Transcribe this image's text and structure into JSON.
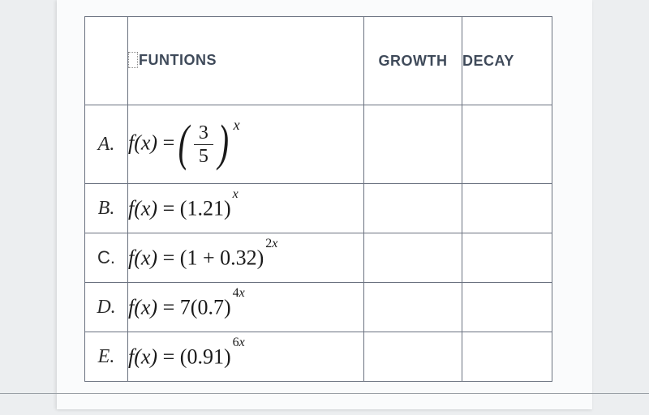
{
  "table": {
    "border_color": "#6b7280",
    "background": "#ffffff",
    "paper_background": "#fafbfc",
    "page_background": "#eceef0",
    "header_color": "#3f4a5a",
    "text_color": "#1a1a1a",
    "header": {
      "functions": "FUNTIONS",
      "growth": "GROWTH",
      "decay": "DECAY"
    },
    "columns": {
      "label_width": 52,
      "func_width": 290,
      "growth_width": 120,
      "decay_width": 110
    },
    "rows": [
      {
        "label": "A.",
        "fx": "f(x)",
        "eq": "=",
        "base_type": "fraction",
        "base_num": "3",
        "base_den": "5",
        "exponent": "x",
        "big_parens": true,
        "height": "tall"
      },
      {
        "label": "B.",
        "fx": "f(x)",
        "eq": "=",
        "open": "(",
        "base": "1.21",
        "close": ")",
        "exponent": "x",
        "height": "med"
      },
      {
        "label": "C.",
        "fx": "f(x)",
        "eq": "=",
        "open": "(",
        "base": "1 + 0.32",
        "close": ")",
        "exponent": "2x",
        "height": "med",
        "label_upright": true
      },
      {
        "label": "D.",
        "fx": "f(x)",
        "eq": "=",
        "coef": "7",
        "open": "(",
        "base": "0.7",
        "close": ")",
        "exponent": "4x",
        "height": "med"
      },
      {
        "label": "E.",
        "fx": "f(x)",
        "eq": "=",
        "open": "(",
        "base": "0.91",
        "close": ")",
        "exponent": "6x",
        "height": "med"
      }
    ]
  }
}
